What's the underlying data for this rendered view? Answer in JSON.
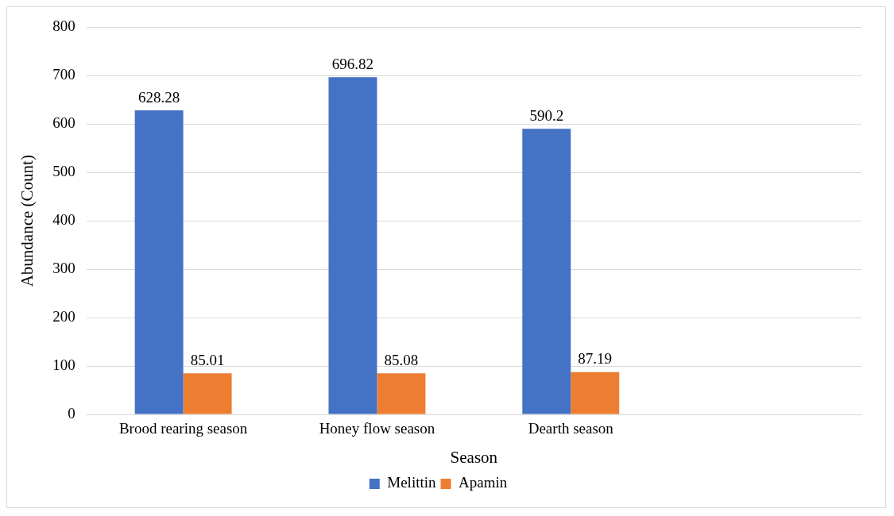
{
  "chart_data": {
    "type": "bar",
    "xlabel": "Season",
    "ylabel": "Abundance (Count)",
    "categories": [
      "Brood rearing season",
      "Honey flow season",
      "Dearth season",
      null
    ],
    "series": [
      {
        "name": "Melittin",
        "color": "#4472c4",
        "values": [
          628.28,
          696.82,
          590.2,
          null
        ]
      },
      {
        "name": "Apamin",
        "color": "#ed7d31",
        "values": [
          85.01,
          85.08,
          87.19,
          null
        ]
      }
    ],
    "ylim": [
      0,
      800
    ],
    "yticks": [
      0,
      100,
      200,
      300,
      400,
      500,
      600,
      700,
      800
    ],
    "grid": "y",
    "legend": "bottom",
    "data_labels": true
  }
}
